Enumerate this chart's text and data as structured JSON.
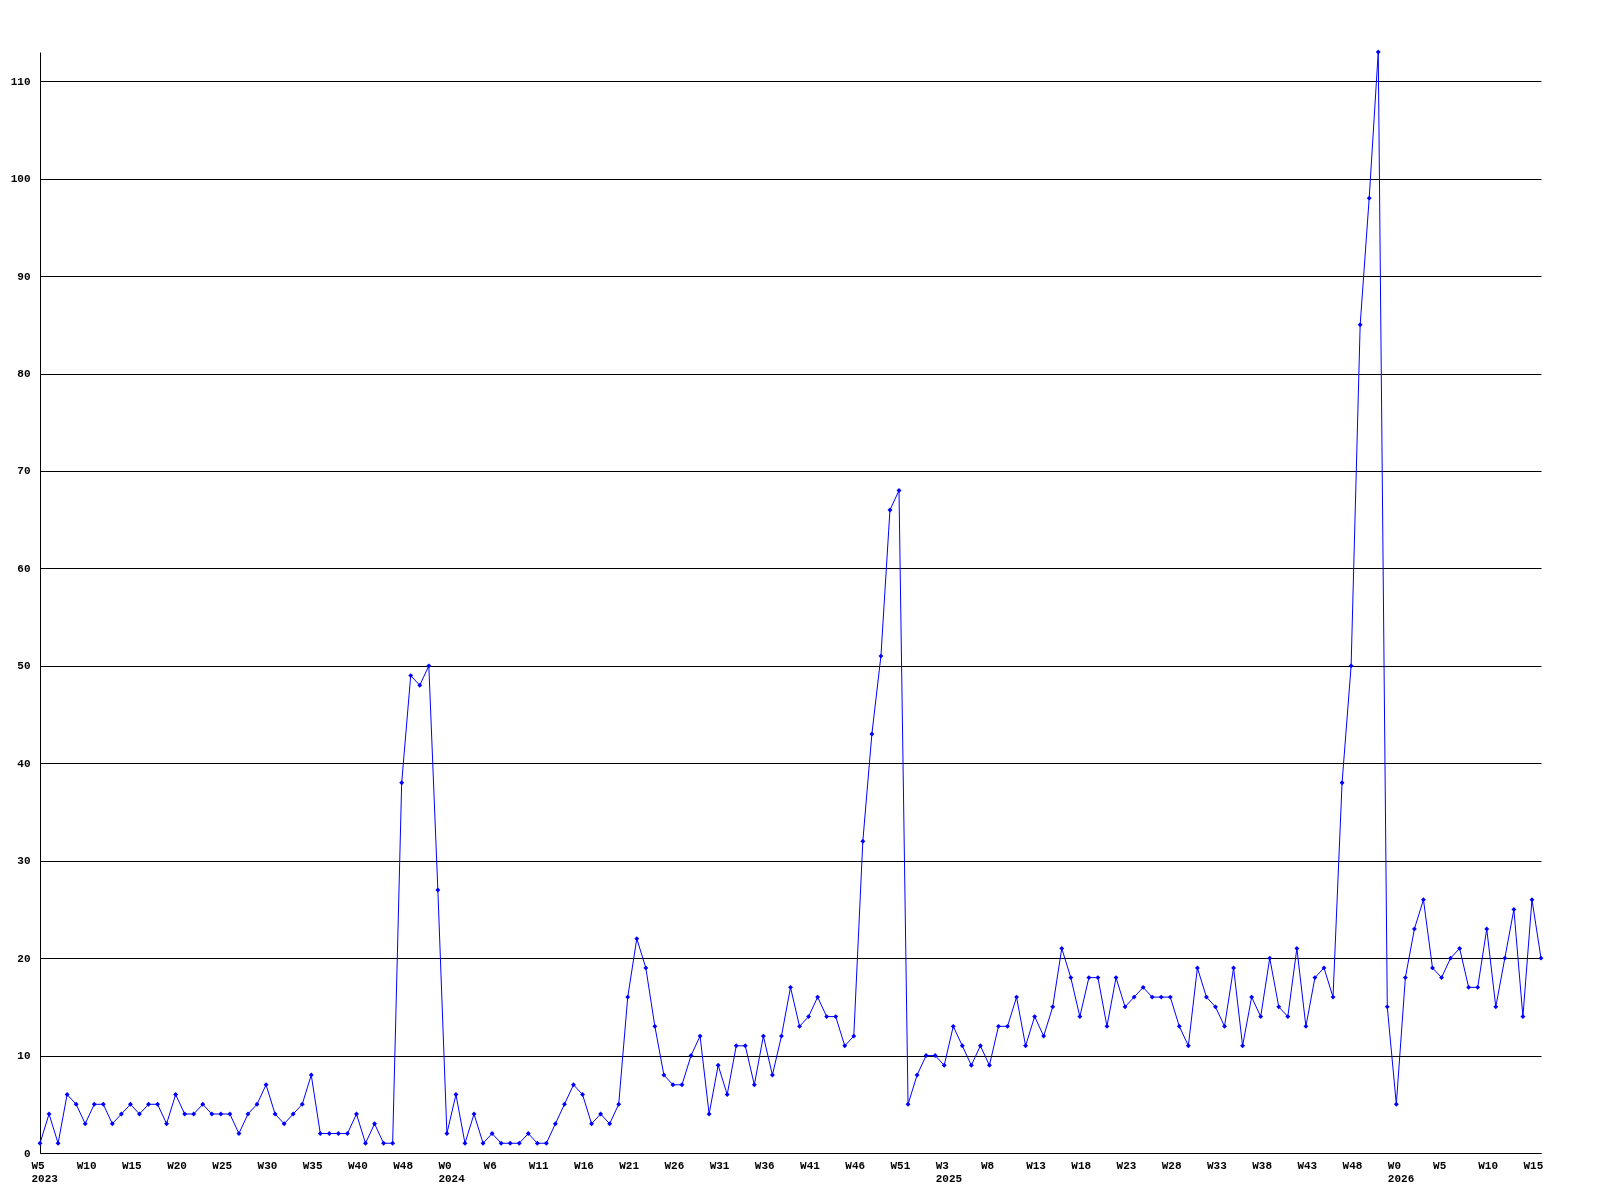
{
  "chart_data": {
    "type": "line",
    "categories": [
      "W5\n2023",
      null,
      null,
      null,
      null,
      "W10",
      null,
      null,
      null,
      null,
      "W15",
      null,
      null,
      null,
      null,
      "W20",
      null,
      null,
      null,
      null,
      "W25",
      null,
      null,
      null,
      null,
      "W30",
      null,
      null,
      null,
      null,
      "W35",
      null,
      null,
      null,
      null,
      "W40",
      null,
      null,
      null,
      null,
      "W48",
      null,
      null,
      null,
      null,
      "W0\n2024",
      null,
      null,
      null,
      null,
      "W6",
      null,
      null,
      null,
      null,
      "W11",
      null,
      null,
      null,
      null,
      "W16",
      null,
      null,
      null,
      null,
      "W21",
      null,
      null,
      null,
      null,
      "W26",
      null,
      null,
      null,
      null,
      "W31",
      null,
      null,
      null,
      null,
      "W36",
      null,
      null,
      null,
      null,
      "W41",
      null,
      null,
      null,
      null,
      "W46",
      null,
      null,
      null,
      null,
      "W51",
      null,
      null,
      null,
      null,
      "W3\n2025",
      null,
      null,
      null,
      null,
      "W8",
      null,
      null,
      null,
      null,
      "W13",
      null,
      null,
      null,
      null,
      "W18",
      null,
      null,
      null,
      null,
      "W23",
      null,
      null,
      null,
      null,
      "W28",
      null,
      null,
      null,
      null,
      "W33",
      null,
      null,
      null,
      null,
      "W38",
      null,
      null,
      null,
      null,
      "W43",
      null,
      null,
      null,
      null,
      "W48",
      null,
      null,
      null,
      null,
      "W0\n2026",
      null,
      null,
      null,
      null,
      "W5",
      null,
      null,
      null,
      null,
      "W10",
      null,
      null,
      null,
      null,
      "W15",
      null
    ],
    "series": [
      {
        "color": "#0000ff",
        "values": [
          1,
          4,
          1,
          6,
          5,
          3,
          5,
          5,
          3,
          4,
          5,
          4,
          5,
          5,
          3,
          6,
          4,
          4,
          5,
          4,
          4,
          4,
          2,
          4,
          5,
          7,
          4,
          3,
          4,
          5,
          8,
          2,
          2,
          2,
          2,
          4,
          1,
          3,
          1,
          1,
          38,
          49,
          48,
          50,
          27,
          2,
          6,
          1,
          4,
          1,
          2,
          1,
          1,
          1,
          2,
          1,
          1,
          3,
          5,
          7,
          6,
          3,
          4,
          3,
          5,
          16,
          22,
          19,
          13,
          8,
          7,
          7,
          10,
          12,
          4,
          9,
          6,
          11,
          11,
          7,
          12,
          8,
          12,
          17,
          13,
          14,
          16,
          14,
          14,
          11,
          12,
          32,
          43,
          51,
          66,
          68,
          5,
          8,
          10,
          10,
          9,
          13,
          11,
          9,
          11,
          9,
          13,
          13,
          16,
          11,
          14,
          12,
          15,
          21,
          18,
          14,
          18,
          18,
          13,
          18,
          15,
          16,
          17,
          16,
          16,
          16,
          13,
          11,
          19,
          16,
          15,
          13,
          19,
          11,
          16,
          14,
          20,
          15,
          14,
          21,
          13,
          18,
          19,
          16,
          38,
          50,
          85,
          98,
          113,
          15,
          5,
          18,
          23,
          26,
          19,
          18,
          20,
          21,
          17,
          17,
          23,
          15,
          20,
          25,
          14,
          26,
          20
        ]
      }
    ],
    "ylim": [
      0,
      113
    ],
    "yticks": [
      0,
      10,
      20,
      30,
      40,
      50,
      60,
      70,
      80,
      90,
      100,
      110
    ],
    "grid": "y",
    "marker": "diamond",
    "line_style": "solid"
  }
}
